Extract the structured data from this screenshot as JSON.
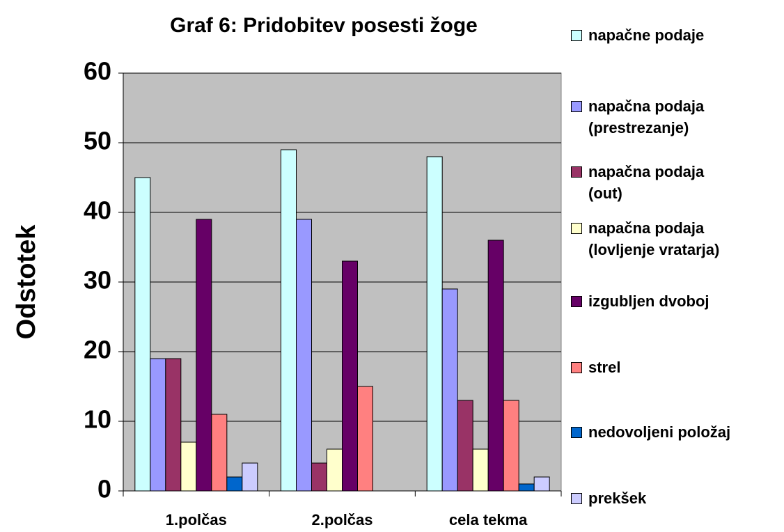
{
  "chart_data": {
    "type": "bar",
    "title": "Graf 6: Pridobitev posesti žoge",
    "y_label": "Odstotek",
    "categories": [
      "1.polčas",
      "2.polčas",
      "cela tekma"
    ],
    "series": [
      {
        "name": "napačne podaje",
        "color": "#ccffff",
        "values": [
          45,
          49,
          48
        ]
      },
      {
        "name": "napačna podaja (prestrezanje)",
        "color": "#9999ff",
        "values": [
          19,
          39,
          29
        ]
      },
      {
        "name": "napačna podaja (out)",
        "color": "#993366",
        "values": [
          19,
          4,
          13
        ]
      },
      {
        "name": "napačna podaja (lovljenje vratarja)",
        "color": "#ffffcc",
        "values": [
          7,
          6,
          6
        ]
      },
      {
        "name": "izgubljen dvoboj",
        "color": "#660066",
        "values": [
          39,
          33,
          36
        ]
      },
      {
        "name": "strel",
        "color": "#ff8080",
        "values": [
          11,
          15,
          13
        ]
      },
      {
        "name": "nedovoljeni položaj",
        "color": "#0066cc",
        "values": [
          2,
          0,
          1
        ]
      },
      {
        "name": "prekšek",
        "color": "#ccccff",
        "values": [
          4,
          0,
          2
        ]
      }
    ],
    "ylim": [
      0,
      60
    ],
    "yticks": [
      0,
      10,
      20,
      30,
      40,
      50,
      60
    ],
    "grid": true,
    "legend": "right"
  }
}
